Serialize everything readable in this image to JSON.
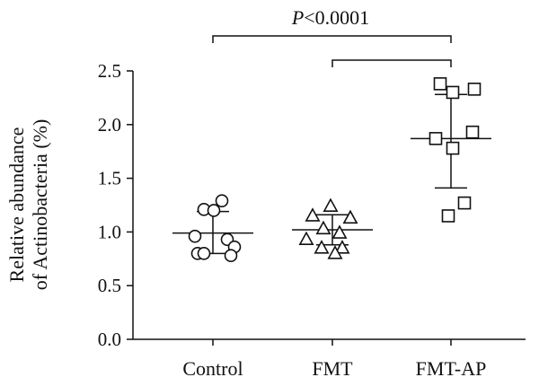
{
  "chart_data": {
    "type": "scatter",
    "ylabel_lines": [
      "Relative abundance",
      "of Actinobacteria (%)"
    ],
    "categories": [
      "Control",
      "FMT",
      "FMT-AP"
    ],
    "ylim": [
      0,
      2.5
    ],
    "yticks": [
      "0.0",
      "0.5",
      "1.0",
      "1.5",
      "2.0",
      "2.5"
    ],
    "ytick_values": [
      0,
      0.5,
      1.0,
      1.5,
      2.0,
      2.5
    ],
    "groups": [
      {
        "category": "Control",
        "marker": "circle",
        "points": [
          1.29,
          1.21,
          1.2,
          0.96,
          0.93,
          0.86,
          0.8,
          0.8,
          0.78
        ],
        "mean": 0.99,
        "sd_upper": 1.19,
        "sd_lower": 0.8
      },
      {
        "category": "FMT",
        "marker": "triangle",
        "points": [
          1.24,
          1.15,
          1.13,
          1.03,
          0.99,
          0.93,
          0.85,
          0.85,
          0.8
        ],
        "mean": 1.02,
        "sd_upper": 1.16,
        "sd_lower": 0.88
      },
      {
        "category": "FMT-AP",
        "marker": "square",
        "points": [
          2.38,
          2.33,
          2.3,
          1.93,
          1.87,
          1.78,
          1.27,
          1.15
        ],
        "mean": 1.87,
        "sd_upper": 2.28,
        "sd_lower": 1.41
      }
    ],
    "comparisons": [
      {
        "from": "Control",
        "to": "FMT-AP",
        "label_prefix": "P",
        "label_rest": "<0.0001"
      },
      {
        "from": "FMT",
        "to": "FMT-AP",
        "label_prefix": "",
        "label_rest": ""
      }
    ],
    "colors": {
      "ink": "#111111"
    }
  }
}
